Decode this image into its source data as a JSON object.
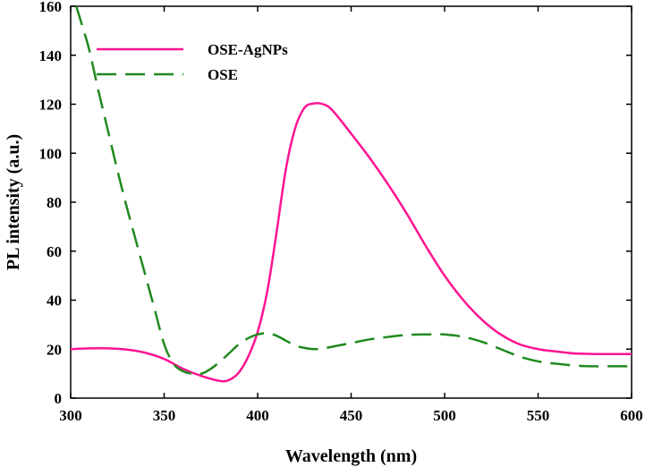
{
  "chart_data": {
    "type": "line",
    "title": "",
    "xlabel": "Wavelength (nm)",
    "ylabel": "PL intensity (a.u.)",
    "xlim": [
      300,
      600
    ],
    "ylim": [
      0,
      160
    ],
    "xticks": [
      300,
      350,
      400,
      450,
      500,
      550,
      600
    ],
    "yticks": [
      0,
      20,
      40,
      60,
      80,
      100,
      120,
      140,
      160
    ],
    "grid": false,
    "legend_position": "top-left",
    "series": [
      {
        "name": "OSE-AgNPs",
        "color": "#ff1493",
        "style": "solid",
        "x": [
          300,
          310,
          320,
          330,
          340,
          350,
          360,
          370,
          380,
          385,
          390,
          395,
          400,
          405,
          410,
          415,
          420,
          425,
          430,
          435,
          440,
          450,
          460,
          470,
          480,
          490,
          500,
          510,
          520,
          530,
          540,
          550,
          560,
          570,
          580,
          590,
          600
        ],
        "y": [
          20,
          20.3,
          20.3,
          19.8,
          18.5,
          16,
          12,
          9,
          7,
          7.5,
          10.5,
          17,
          27,
          43,
          67,
          93,
          110,
          118.5,
          120.3,
          120,
          117.5,
          108,
          98,
          87,
          75,
          62,
          50,
          40,
          32,
          26,
          22,
          20,
          19,
          18.2,
          18,
          18,
          18
        ]
      },
      {
        "name": "OSE",
        "color": "#1f8a1f",
        "style": "dashed",
        "x": [
          303,
          307,
          310,
          315,
          320,
          325,
          330,
          335,
          340,
          345,
          350,
          355,
          360,
          365,
          370,
          375,
          380,
          385,
          390,
          395,
          400,
          405,
          410,
          415,
          420,
          425,
          430,
          435,
          440,
          450,
          460,
          470,
          480,
          490,
          500,
          510,
          520,
          530,
          540,
          550,
          560,
          570,
          580,
          590,
          600
        ],
        "y": [
          160,
          150,
          142,
          125,
          109,
          93,
          78,
          64,
          50,
          36,
          22,
          14,
          11,
          10,
          10,
          12,
          15,
          18.5,
          22,
          24.5,
          26,
          26.5,
          25.5,
          23.5,
          21.5,
          20.5,
          20,
          20.3,
          21,
          22.5,
          24,
          25,
          25.8,
          26,
          26,
          25,
          23,
          20,
          17,
          15,
          14,
          13.3,
          13,
          13,
          13
        ]
      }
    ]
  }
}
